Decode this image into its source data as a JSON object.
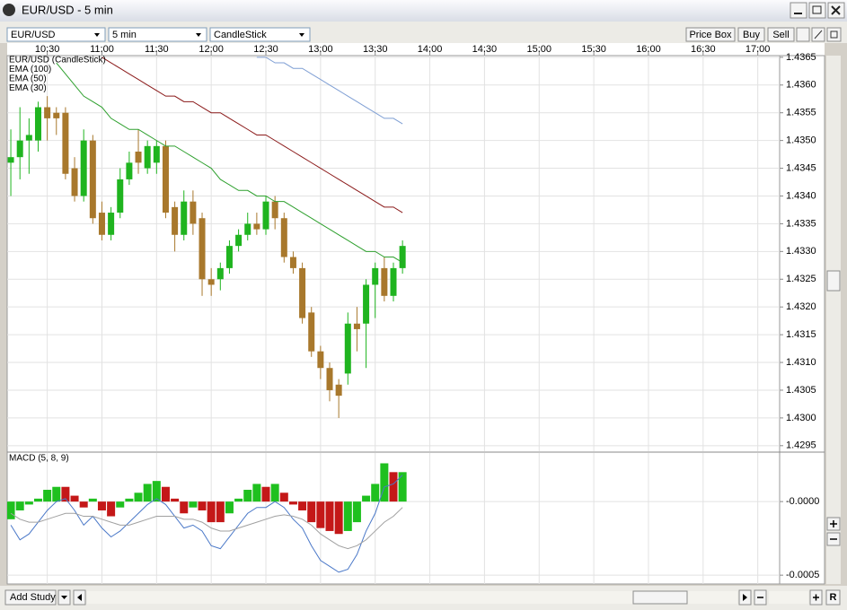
{
  "window": {
    "title": "EUR/USD - 5 min"
  },
  "toolbar": {
    "symbol": "EUR/USD",
    "interval": "5 min",
    "chart_style": "CandleStick",
    "buttons": [
      "Price Box",
      "Buy",
      "Sell"
    ]
  },
  "footer": {
    "add_study": "Add Study",
    "reset": "R"
  },
  "chart_data": [
    {
      "type": "candlestick",
      "x": [
        "10:10",
        "10:15",
        "10:20",
        "10:25",
        "10:30",
        "10:35",
        "10:40",
        "10:45",
        "10:50",
        "10:55",
        "11:00",
        "11:05",
        "11:10",
        "11:15",
        "11:20",
        "11:25",
        "11:30",
        "11:35",
        "11:40",
        "11:45",
        "11:50",
        "11:55",
        "12:00",
        "12:05",
        "12:10",
        "12:15",
        "12:20",
        "12:25",
        "12:30",
        "12:35",
        "12:40",
        "12:45",
        "12:50",
        "12:55",
        "13:00",
        "13:05",
        "13:10",
        "13:15",
        "13:20",
        "13:25",
        "13:30",
        "13:35",
        "13:40",
        "13:45"
      ],
      "xlim": [
        "10:08",
        "17:12"
      ],
      "xticks": [
        "10:30",
        "11:00",
        "11:30",
        "12:00",
        "12:30",
        "13:00",
        "13:30",
        "14:00",
        "14:30",
        "15:00",
        "15:30",
        "16:00",
        "16:30",
        "17:00"
      ],
      "ylim": [
        1.4294,
        1.43653
      ],
      "yticks": [
        {
          "value": 1.4295,
          "label": "1.4295"
        },
        {
          "value": 1.43,
          "label": "1.4300"
        },
        {
          "value": 1.4305,
          "label": "1.4305"
        },
        {
          "value": 1.431,
          "label": "1.4310"
        },
        {
          "value": 1.4315,
          "label": "1.4315"
        },
        {
          "value": 1.432,
          "label": "1.4320"
        },
        {
          "value": 1.4325,
          "label": "1.4325"
        },
        {
          "value": 1.433,
          "label": "1.4330"
        },
        {
          "value": 1.4335,
          "label": "1.4335"
        },
        {
          "value": 1.434,
          "label": "1.4340"
        },
        {
          "value": 1.4345,
          "label": "1.4345"
        },
        {
          "value": 1.435,
          "label": "1.4350"
        },
        {
          "value": 1.4355,
          "label": "1.4355"
        },
        {
          "value": 1.436,
          "label": "1.4360"
        },
        {
          "value": 1.4365,
          "label": "1.4365"
        }
      ],
      "grid": true,
      "series": [
        {
          "name": "EUR/USD (CandleStick)",
          "type": "candlestick",
          "color": "#c8a040",
          "up_color": "#1fb41f",
          "down_color": "#a8782c",
          "open": [
            1.4346,
            1.4347,
            1.435,
            1.435,
            1.4356,
            1.4355,
            1.4355,
            1.4345,
            1.434,
            1.435,
            1.4337,
            1.4333,
            1.4337,
            1.4343,
            1.4348,
            1.4345,
            1.4346,
            1.4349,
            1.4338,
            1.4333,
            1.4339,
            1.4336,
            1.4325,
            1.4325,
            1.4327,
            1.4331,
            1.4333,
            1.4335,
            1.4334,
            1.4339,
            1.4336,
            1.4329,
            1.4327,
            1.4319,
            1.4312,
            1.4309,
            1.4306,
            1.4308,
            1.4317,
            1.4317,
            1.4324,
            1.4327,
            1.4322,
            1.4327
          ],
          "high": [
            1.4352,
            1.4356,
            1.4354,
            1.4357,
            1.4358,
            1.4356,
            1.4356,
            1.4347,
            1.4352,
            1.4351,
            1.4339,
            1.4338,
            1.4345,
            1.4348,
            1.4352,
            1.435,
            1.435,
            1.435,
            1.4339,
            1.4341,
            1.4341,
            1.4337,
            1.4327,
            1.4328,
            1.4332,
            1.4334,
            1.4337,
            1.4337,
            1.434,
            1.434,
            1.4337,
            1.433,
            1.4328,
            1.432,
            1.4313,
            1.431,
            1.4307,
            1.4319,
            1.432,
            1.4325,
            1.4328,
            1.4329,
            1.4328,
            1.4332
          ],
          "low": [
            1.434,
            1.4343,
            1.4344,
            1.4348,
            1.435,
            1.4351,
            1.4343,
            1.4339,
            1.4339,
            1.4335,
            1.4332,
            1.4332,
            1.4336,
            1.4342,
            1.4344,
            1.4344,
            1.4344,
            1.4336,
            1.433,
            1.4332,
            1.4333,
            1.4322,
            1.4322,
            1.4323,
            1.4326,
            1.433,
            1.4332,
            1.4333,
            1.4333,
            1.4334,
            1.4328,
            1.4326,
            1.4317,
            1.4311,
            1.4307,
            1.4303,
            1.43,
            1.4306,
            1.4312,
            1.4309,
            1.4318,
            1.4321,
            1.4321,
            1.4326
          ],
          "close": [
            1.4347,
            1.435,
            1.4351,
            1.4356,
            1.4354,
            1.4354,
            1.4344,
            1.434,
            1.435,
            1.4336,
            1.4333,
            1.4337,
            1.4343,
            1.4346,
            1.4346,
            1.4349,
            1.4349,
            1.4337,
            1.4333,
            1.4339,
            1.4335,
            1.4325,
            1.4324,
            1.4327,
            1.4331,
            1.4333,
            1.4335,
            1.4334,
            1.4339,
            1.4336,
            1.4329,
            1.4327,
            1.4318,
            1.4312,
            1.4309,
            1.4305,
            1.4304,
            1.4317,
            1.4316,
            1.4324,
            1.4327,
            1.4322,
            1.4327,
            1.4331
          ]
        },
        {
          "name": "EMA (100)",
          "type": "line",
          "color": "#7f9fd4",
          "values": [
            null,
            null,
            null,
            null,
            null,
            null,
            null,
            null,
            null,
            null,
            null,
            null,
            null,
            null,
            null,
            null,
            null,
            null,
            null,
            null,
            null,
            null,
            null,
            null,
            null,
            null,
            null,
            1.4365,
            1.4365,
            1.4364,
            1.4364,
            1.4363,
            1.4363,
            1.4362,
            1.4361,
            1.436,
            1.4359,
            1.4358,
            1.4357,
            1.4356,
            1.4355,
            1.4354,
            1.4354,
            1.4353
          ]
        },
        {
          "name": "EMA (50)",
          "type": "line",
          "color": "#8b1a1a",
          "values": [
            null,
            null,
            null,
            null,
            null,
            null,
            null,
            null,
            null,
            null,
            1.4365,
            1.4364,
            1.4363,
            1.4362,
            1.4361,
            1.436,
            1.4359,
            1.4358,
            1.4358,
            1.4357,
            1.4357,
            1.4356,
            1.4355,
            1.4355,
            1.4354,
            1.4353,
            1.4352,
            1.4351,
            1.4351,
            1.435,
            1.4349,
            1.4348,
            1.4347,
            1.4346,
            1.4345,
            1.4344,
            1.4343,
            1.4342,
            1.4341,
            1.434,
            1.4339,
            1.4338,
            1.4338,
            1.4337
          ]
        },
        {
          "name": "EMA (30)",
          "type": "line",
          "color": "#2ea02e",
          "values": [
            null,
            null,
            null,
            null,
            null,
            1.4364,
            1.4362,
            1.436,
            1.4358,
            1.4357,
            1.4356,
            1.4354,
            1.4353,
            1.4352,
            1.4352,
            1.4351,
            1.435,
            1.4349,
            1.4349,
            1.4348,
            1.4347,
            1.4346,
            1.4345,
            1.4343,
            1.4342,
            1.4341,
            1.4341,
            1.434,
            1.434,
            1.4339,
            1.4339,
            1.4338,
            1.4337,
            1.4336,
            1.4335,
            1.4334,
            1.4333,
            1.4332,
            1.4331,
            1.433,
            1.433,
            1.4329,
            1.4329,
            1.4328
          ]
        }
      ]
    },
    {
      "type": "macd",
      "title": "MACD (5, 8, 9)",
      "title_color": "#6a8fd0",
      "ylim": [
        -0.00056,
        0.00033
      ],
      "yticks": [
        {
          "value": 0,
          "label": "-0.0000"
        },
        {
          "value": -0.0005,
          "label": "-0.0005"
        }
      ],
      "grid": true,
      "series": [
        {
          "type": "bar",
          "values": [
            -0.00012,
            -6e-05,
            -2e-05,
            2e-05,
            8e-05,
            0.0001,
            0.0001,
            4e-05,
            -4e-05,
            2e-05,
            -6e-05,
            -0.0001,
            -4e-05,
            2e-05,
            6e-05,
            0.00012,
            0.00014,
            0.0001,
            2e-05,
            -8e-05,
            -4e-05,
            -6e-05,
            -0.00014,
            -0.00014,
            -8e-05,
            2e-05,
            8e-05,
            0.00012,
            0.0001,
            0.00012,
            6e-05,
            -2e-05,
            -6e-05,
            -0.00014,
            -0.00018,
            -0.0002,
            -0.00022,
            -0.0002,
            -0.00014,
            4e-05,
            0.00012,
            0.00026,
            0.0002,
            0.0002
          ],
          "colors": [
            "#1fc01f",
            "#1fc01f",
            "#1fc01f",
            "#1fc01f",
            "#1fc01f",
            "#1fc01f",
            "#c41818",
            "#c41818",
            "#c41818",
            "#1fc01f",
            "#c41818",
            "#c41818",
            "#1fc01f",
            "#1fc01f",
            "#1fc01f",
            "#1fc01f",
            "#1fc01f",
            "#c41818",
            "#c41818",
            "#c41818",
            "#1fc01f",
            "#c41818",
            "#c41818",
            "#c41818",
            "#1fc01f",
            "#1fc01f",
            "#1fc01f",
            "#1fc01f",
            "#c41818",
            "#1fc01f",
            "#c41818",
            "#c41818",
            "#c41818",
            "#c41818",
            "#c41818",
            "#c41818",
            "#c41818",
            "#1fc01f",
            "#1fc01f",
            "#1fc01f",
            "#1fc01f",
            "#1fc01f",
            "#c41818",
            "#1fc01f"
          ]
        },
        {
          "type": "line",
          "color": "#4a78c8",
          "values": [
            -0.00016,
            -0.00026,
            -0.00022,
            -0.00014,
            -6e-05,
            0,
            2e-05,
            -6e-05,
            -0.00016,
            -0.0001,
            -0.00018,
            -0.00024,
            -0.0002,
            -0.00014,
            -8e-05,
            -2e-05,
            2e-05,
            -2e-05,
            -0.0001,
            -0.00018,
            -0.00016,
            -0.0002,
            -0.0003,
            -0.00032,
            -0.00024,
            -0.00016,
            -8e-05,
            -4e-05,
            -4e-05,
            0,
            -4e-05,
            -0.00012,
            -0.00018,
            -0.0003,
            -0.0004,
            -0.00044,
            -0.00048,
            -0.00046,
            -0.00036,
            -0.0002,
            -8e-05,
            0.0001,
            0.00012,
            0.00018
          ]
        },
        {
          "type": "line",
          "color": "#a0a0a0",
          "values": [
            -8e-05,
            -0.00012,
            -0.00014,
            -0.00014,
            -0.00012,
            -0.0001,
            -8e-05,
            -8e-05,
            -0.0001,
            -0.0001,
            -0.00012,
            -0.00014,
            -0.00016,
            -0.00016,
            -0.00014,
            -0.00012,
            -0.0001,
            -0.0001,
            -0.0001,
            -0.00012,
            -0.00012,
            -0.00014,
            -0.00018,
            -0.0002,
            -0.0002,
            -0.00018,
            -0.00016,
            -0.00014,
            -0.00012,
            -0.0001,
            -9e-05,
            -0.0001,
            -0.00012,
            -0.00016,
            -0.00022,
            -0.00026,
            -0.0003,
            -0.00032,
            -0.0003,
            -0.00026,
            -0.0002,
            -0.00014,
            -0.0001,
            -4e-05
          ]
        }
      ]
    }
  ]
}
